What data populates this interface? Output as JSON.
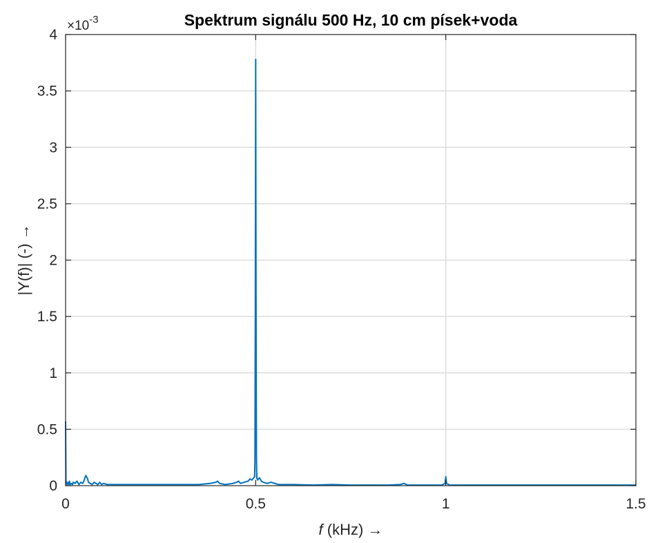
{
  "chart_data": {
    "type": "line",
    "title": "Spektrum signálu 500 Hz, 10 cm písek+voda",
    "xlabel_var": "f",
    "xlabel_rest": " (kHz) →",
    "ylabel": "|Y(f)| (-) →",
    "y_exponent_label": "×10",
    "y_exponent_power": "-3",
    "xlim": [
      0,
      1.5
    ],
    "ylim": [
      0,
      4
    ],
    "x_ticks": [
      0,
      0.5,
      1,
      1.5
    ],
    "x_tick_labels": [
      "0",
      "0.5",
      "1",
      "1.5"
    ],
    "y_ticks": [
      0,
      0.5,
      1,
      1.5,
      2,
      2.5,
      3,
      3.5,
      4
    ],
    "y_tick_labels": [
      "0",
      "0.5",
      "1",
      "1.5",
      "2",
      "2.5",
      "3",
      "3.5",
      "4"
    ],
    "grid": true,
    "series": [
      {
        "color": "#0072bd",
        "x": [
          0,
          0.001,
          0.002,
          0.004,
          0.006,
          0.008,
          0.01,
          0.012,
          0.015,
          0.018,
          0.02,
          0.025,
          0.03,
          0.035,
          0.04,
          0.045,
          0.048,
          0.05,
          0.053,
          0.055,
          0.058,
          0.06,
          0.065,
          0.07,
          0.075,
          0.08,
          0.085,
          0.09,
          0.095,
          0.1,
          0.11,
          0.12,
          0.15,
          0.2,
          0.25,
          0.3,
          0.35,
          0.38,
          0.395,
          0.4,
          0.405,
          0.42,
          0.44,
          0.45,
          0.455,
          0.46,
          0.47,
          0.48,
          0.485,
          0.49,
          0.495,
          0.497,
          0.498,
          0.499,
          0.5,
          0.501,
          0.502,
          0.503,
          0.505,
          0.51,
          0.515,
          0.52,
          0.53,
          0.54,
          0.55,
          0.56,
          0.6,
          0.65,
          0.7,
          0.75,
          0.8,
          0.85,
          0.88,
          0.89,
          0.9,
          0.95,
          0.99,
          0.998,
          1.0,
          1.002,
          1.01,
          1.05,
          1.1,
          1.2,
          1.3,
          1.4,
          1.5
        ],
        "y": [
          0.57,
          0.05,
          0.02,
          0.01,
          0.03,
          0.01,
          0.04,
          0.01,
          0.02,
          0.01,
          0.03,
          0.02,
          0.04,
          0.01,
          0.03,
          0.02,
          0.04,
          0.06,
          0.09,
          0.08,
          0.06,
          0.03,
          0.02,
          0.01,
          0.03,
          0.02,
          0.01,
          0.03,
          0.01,
          0.02,
          0.01,
          0.01,
          0.01,
          0.01,
          0.01,
          0.01,
          0.01,
          0.02,
          0.03,
          0.04,
          0.02,
          0.01,
          0.02,
          0.03,
          0.04,
          0.02,
          0.03,
          0.04,
          0.06,
          0.05,
          0.07,
          0.08,
          0.2,
          1.5,
          3.78,
          1.6,
          0.25,
          0.07,
          0.05,
          0.07,
          0.04,
          0.03,
          0.02,
          0.03,
          0.02,
          0.01,
          0.01,
          0.005,
          0.01,
          0.005,
          0.005,
          0.005,
          0.01,
          0.02,
          0.005,
          0.005,
          0.005,
          0.02,
          0.08,
          0.02,
          0.005,
          0.005,
          0.005,
          0.005,
          0.005,
          0.005,
          0.005
        ]
      }
    ]
  }
}
